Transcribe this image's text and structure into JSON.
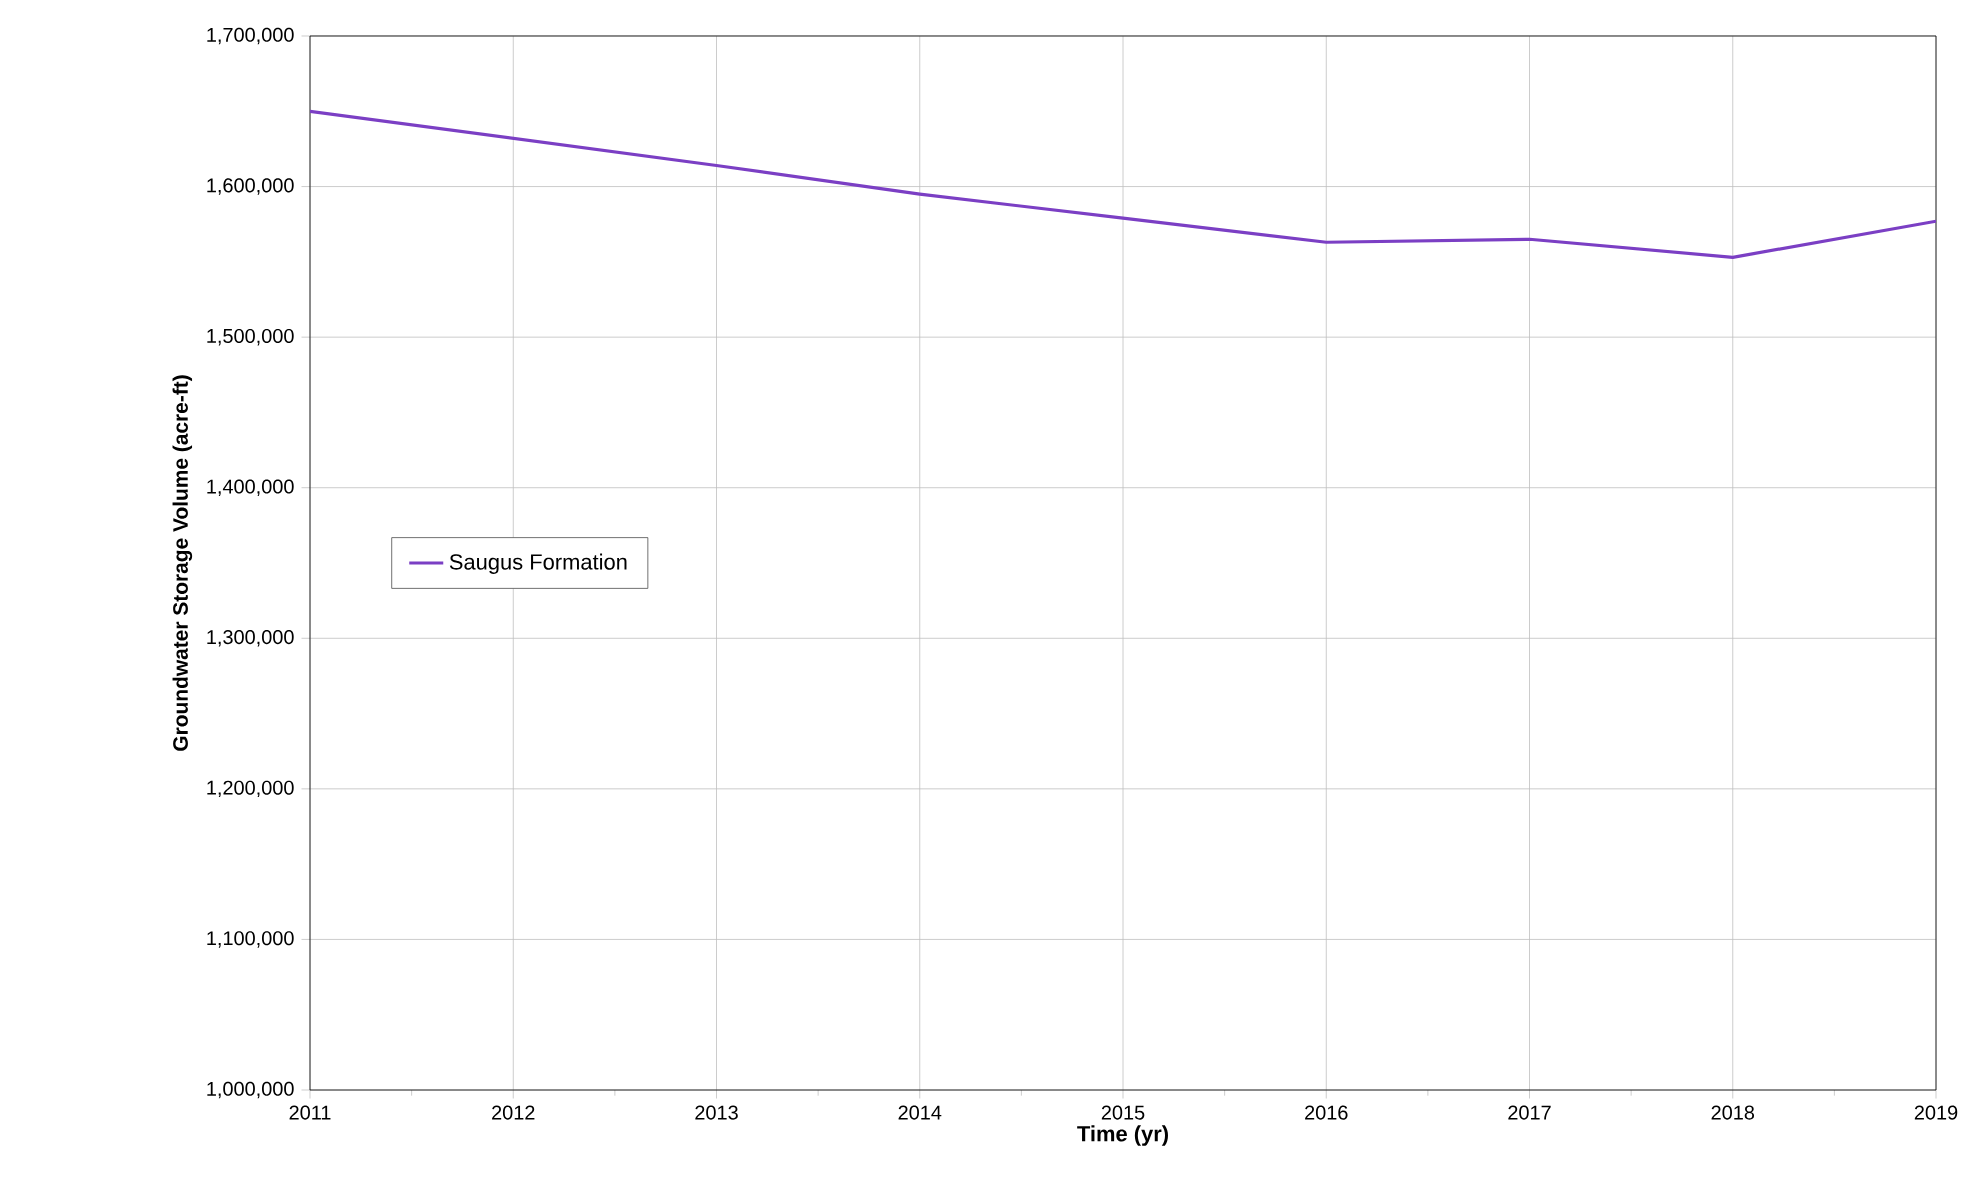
{
  "chart_data": {
    "type": "line",
    "xlabel": "Time (yr)",
    "ylabel": "Groundwater Storage Volume (acre-ft)",
    "x": [
      2011,
      2012,
      2013,
      2014,
      2015,
      2016,
      2017,
      2018,
      2019
    ],
    "series": [
      {
        "name": "Saugus Formation",
        "color": "#7b3fc4",
        "values": [
          1650000,
          1632000,
          1614000,
          1595000,
          1579000,
          1563000,
          1565000,
          1553000,
          1577000
        ]
      }
    ],
    "xlim": [
      2011,
      2019
    ],
    "xticks": [
      2011,
      2012,
      2013,
      2014,
      2015,
      2016,
      2017,
      2018,
      2019
    ],
    "ylim": [
      1000000,
      1700000
    ],
    "yticks": [
      {
        "value": 1000000,
        "label": "1,000,000"
      },
      {
        "value": 1100000,
        "label": "1,100,000"
      },
      {
        "value": 1200000,
        "label": "1,200,000"
      },
      {
        "value": 1300000,
        "label": "1,300,000"
      },
      {
        "value": 1400000,
        "label": "1,400,000"
      },
      {
        "value": 1500000,
        "label": "1,500,000"
      },
      {
        "value": 1600000,
        "label": "1,600,000"
      },
      {
        "value": 1700000,
        "label": "1,700,000"
      }
    ],
    "grid": true,
    "legend": "left",
    "line_style": "solid"
  }
}
